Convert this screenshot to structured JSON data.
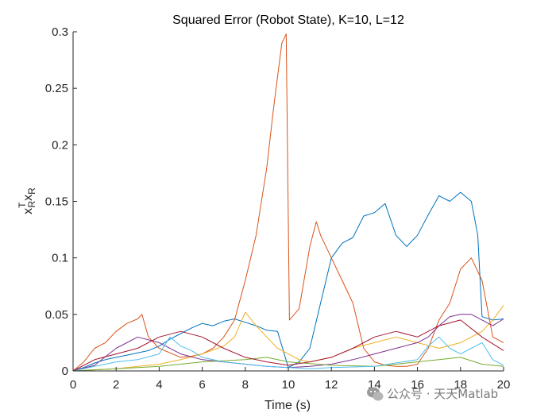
{
  "chart_data": {
    "type": "line",
    "title": "Squared Error (Robot State), K=10, L=12",
    "xlabel": "Time (s)",
    "ylabel": "x_R^T x_R",
    "xlim": [
      0,
      20
    ],
    "ylim": [
      0,
      0.3
    ],
    "xticks": [
      0,
      2,
      4,
      6,
      8,
      10,
      12,
      14,
      16,
      18,
      20
    ],
    "yticks": [
      0,
      0.05,
      0.1,
      0.15,
      0.2,
      0.25,
      0.3
    ],
    "ytick_labels": [
      "0",
      "0.05",
      "0.1",
      "0.15",
      "0.2",
      "0.25",
      "0.3"
    ],
    "grid": false,
    "legend": "none",
    "series": [
      {
        "color": "#0072BD",
        "x": [
          0,
          0.5,
          1,
          1.5,
          2,
          2.5,
          3,
          3.5,
          4,
          4.5,
          5,
          5.5,
          6,
          6.5,
          7,
          7.5,
          8,
          8.5,
          9,
          9.5,
          10,
          10.5,
          11,
          11.5,
          12,
          12.5,
          13,
          13.5,
          14,
          14.5,
          15,
          15.5,
          16,
          16.5,
          17,
          17.5,
          18,
          18.5,
          18.8,
          19,
          19.5,
          20
        ],
        "y": [
          0,
          0.003,
          0.007,
          0.01,
          0.012,
          0.014,
          0.016,
          0.018,
          0.022,
          0.028,
          0.033,
          0.038,
          0.042,
          0.04,
          0.044,
          0.046,
          0.043,
          0.04,
          0.036,
          0.035,
          0.003,
          0.008,
          0.02,
          0.06,
          0.1,
          0.113,
          0.118,
          0.137,
          0.14,
          0.148,
          0.12,
          0.11,
          0.12,
          0.138,
          0.155,
          0.15,
          0.158,
          0.15,
          0.12,
          0.048,
          0.045,
          0.046
        ]
      },
      {
        "color": "#D95319",
        "x": [
          0,
          0.5,
          1,
          1.5,
          2,
          2.5,
          3,
          3.2,
          3.5,
          4,
          4.5,
          5,
          5.5,
          6,
          6.5,
          7,
          7.5,
          8,
          8.5,
          9,
          9.3,
          9.5,
          9.7,
          9.9,
          10.05,
          10.5,
          11,
          11.3,
          11.5,
          12,
          12.5,
          13,
          13.5,
          14,
          14.5,
          15,
          15.5,
          16,
          16.5,
          17,
          17.5,
          18,
          18.5,
          19,
          19.5,
          20
        ],
        "y": [
          0,
          0.008,
          0.02,
          0.025,
          0.035,
          0.042,
          0.046,
          0.05,
          0.03,
          0.02,
          0.016,
          0.012,
          0.013,
          0.015,
          0.02,
          0.03,
          0.045,
          0.08,
          0.12,
          0.18,
          0.23,
          0.26,
          0.29,
          0.298,
          0.045,
          0.055,
          0.11,
          0.132,
          0.12,
          0.1,
          0.08,
          0.06,
          0.02,
          0.008,
          0.005,
          0.004,
          0.004,
          0.006,
          0.02,
          0.045,
          0.06,
          0.09,
          0.1,
          0.08,
          0.03,
          0.025
        ]
      },
      {
        "color": "#EDB120",
        "x": [
          0,
          1,
          2,
          3,
          4,
          5,
          6,
          7,
          7.5,
          8,
          8.5,
          9,
          9.5,
          10,
          10.5,
          11,
          12,
          13,
          14,
          15,
          16,
          17,
          18,
          18.5,
          19,
          19.5,
          20
        ],
        "y": [
          0,
          0.001,
          0.002,
          0.004,
          0.006,
          0.01,
          0.015,
          0.022,
          0.03,
          0.052,
          0.04,
          0.03,
          0.02,
          0.015,
          0.01,
          0.008,
          0.012,
          0.02,
          0.025,
          0.03,
          0.025,
          0.02,
          0.025,
          0.03,
          0.035,
          0.045,
          0.058
        ]
      },
      {
        "color": "#7E2F8E",
        "x": [
          0,
          1,
          2,
          3,
          4,
          5,
          6,
          7,
          8,
          9,
          10,
          11,
          12,
          13,
          14,
          15,
          16,
          16.5,
          17,
          17.5,
          18,
          18.5,
          19,
          19.5,
          20
        ],
        "y": [
          0,
          0.005,
          0.02,
          0.03,
          0.025,
          0.015,
          0.01,
          0.008,
          0.006,
          0.004,
          0.003,
          0.004,
          0.006,
          0.01,
          0.015,
          0.02,
          0.025,
          0.03,
          0.04,
          0.048,
          0.05,
          0.05,
          0.045,
          0.04,
          0.046
        ]
      },
      {
        "color": "#77AC30",
        "x": [
          0,
          2,
          4,
          6,
          8,
          9,
          10,
          12,
          14,
          15,
          16,
          17,
          18,
          19,
          20
        ],
        "y": [
          0,
          0.002,
          0.004,
          0.008,
          0.01,
          0.012,
          0.008,
          0.005,
          0.004,
          0.006,
          0.008,
          0.01,
          0.012,
          0.006,
          0.004
        ]
      },
      {
        "color": "#4DBEEE",
        "x": [
          0,
          1,
          2,
          3,
          4,
          4.5,
          5,
          5.5,
          6,
          7,
          8,
          9,
          10,
          11,
          12,
          14,
          16,
          16.5,
          17,
          17.5,
          18,
          18.5,
          19,
          19.5,
          20
        ],
        "y": [
          0,
          0.004,
          0.008,
          0.01,
          0.015,
          0.03,
          0.022,
          0.018,
          0.012,
          0.008,
          0.006,
          0.004,
          0.003,
          0.002,
          0.003,
          0.004,
          0.01,
          0.022,
          0.03,
          0.02,
          0.015,
          0.02,
          0.025,
          0.01,
          0.005
        ]
      },
      {
        "color": "#A2142F",
        "x": [
          0,
          1,
          2,
          3,
          4,
          5,
          6,
          7,
          8,
          9,
          10,
          11,
          12,
          13,
          14,
          15,
          16,
          17,
          18,
          19,
          20
        ],
        "y": [
          0,
          0.01,
          0.015,
          0.02,
          0.03,
          0.035,
          0.03,
          0.02,
          0.012,
          0.008,
          0.005,
          0.008,
          0.012,
          0.02,
          0.03,
          0.035,
          0.03,
          0.04,
          0.045,
          0.03,
          0.018
        ]
      }
    ]
  },
  "watermark": {
    "icon": "wechat-icon",
    "text": "公众号 · 天天Matlab"
  }
}
